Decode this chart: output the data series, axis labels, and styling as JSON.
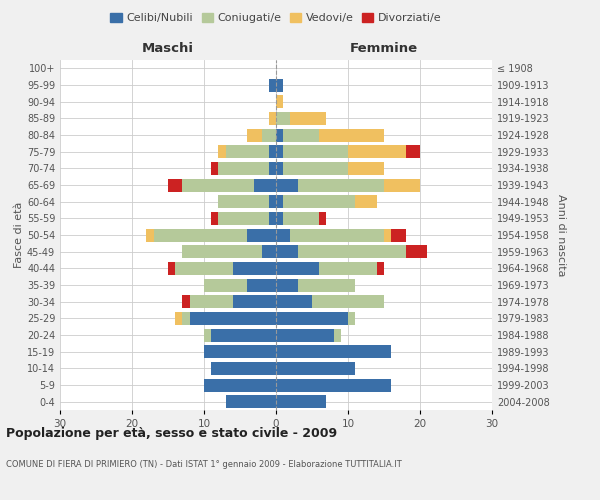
{
  "age_groups": [
    "0-4",
    "5-9",
    "10-14",
    "15-19",
    "20-24",
    "25-29",
    "30-34",
    "35-39",
    "40-44",
    "45-49",
    "50-54",
    "55-59",
    "60-64",
    "65-69",
    "70-74",
    "75-79",
    "80-84",
    "85-89",
    "90-94",
    "95-99",
    "100+"
  ],
  "birth_years": [
    "2004-2008",
    "1999-2003",
    "1994-1998",
    "1989-1993",
    "1984-1988",
    "1979-1983",
    "1974-1978",
    "1969-1973",
    "1964-1968",
    "1959-1963",
    "1954-1958",
    "1949-1953",
    "1944-1948",
    "1939-1943",
    "1934-1938",
    "1929-1933",
    "1924-1928",
    "1919-1923",
    "1914-1918",
    "1909-1913",
    "≤ 1908"
  ],
  "colors": {
    "celibi": "#3a6fa8",
    "coniugati": "#b5c99a",
    "vedovi": "#f0c060",
    "divorziati": "#cc2222"
  },
  "maschi": {
    "celibi": [
      7,
      10,
      9,
      10,
      9,
      12,
      6,
      4,
      6,
      2,
      4,
      1,
      1,
      3,
      1,
      1,
      0,
      0,
      0,
      1,
      0
    ],
    "coniugati": [
      0,
      0,
      0,
      0,
      1,
      1,
      6,
      6,
      8,
      11,
      13,
      7,
      7,
      10,
      7,
      6,
      2,
      0,
      0,
      0,
      0
    ],
    "vedovi": [
      0,
      0,
      0,
      0,
      0,
      1,
      0,
      0,
      0,
      0,
      1,
      0,
      0,
      0,
      0,
      1,
      2,
      1,
      0,
      0,
      0
    ],
    "divorziati": [
      0,
      0,
      0,
      0,
      0,
      0,
      1,
      0,
      1,
      0,
      0,
      1,
      0,
      2,
      1,
      0,
      0,
      0,
      0,
      0,
      0
    ]
  },
  "femmine": {
    "celibi": [
      7,
      16,
      11,
      16,
      8,
      10,
      5,
      3,
      6,
      3,
      2,
      1,
      1,
      3,
      1,
      1,
      1,
      0,
      0,
      1,
      0
    ],
    "coniugati": [
      0,
      0,
      0,
      0,
      1,
      1,
      10,
      8,
      8,
      15,
      13,
      5,
      10,
      12,
      9,
      9,
      5,
      2,
      0,
      0,
      0
    ],
    "vedovi": [
      0,
      0,
      0,
      0,
      0,
      0,
      0,
      0,
      0,
      0,
      1,
      0,
      3,
      5,
      5,
      8,
      9,
      5,
      1,
      0,
      0
    ],
    "divorziati": [
      0,
      0,
      0,
      0,
      0,
      0,
      0,
      0,
      1,
      3,
      2,
      1,
      0,
      0,
      0,
      2,
      0,
      0,
      0,
      0,
      0
    ]
  },
  "title": "Popolazione per età, sesso e stato civile - 2009",
  "subtitle": "COMUNE DI FIERA DI PRIMIERO (TN) - Dati ISTAT 1° gennaio 2009 - Elaborazione TUTTITALIA.IT",
  "xlabel_left": "Maschi",
  "xlabel_right": "Femmine",
  "ylabel_left": "Fasce di età",
  "ylabel_right": "Anni di nascita",
  "xlim": 30,
  "legend_labels": [
    "Celibi/Nubili",
    "Coniugati/e",
    "Vedovi/e",
    "Divorziati/e"
  ],
  "bg_color": "#f0f0f0",
  "plot_bg_color": "#ffffff",
  "grid_color": "#cccccc"
}
